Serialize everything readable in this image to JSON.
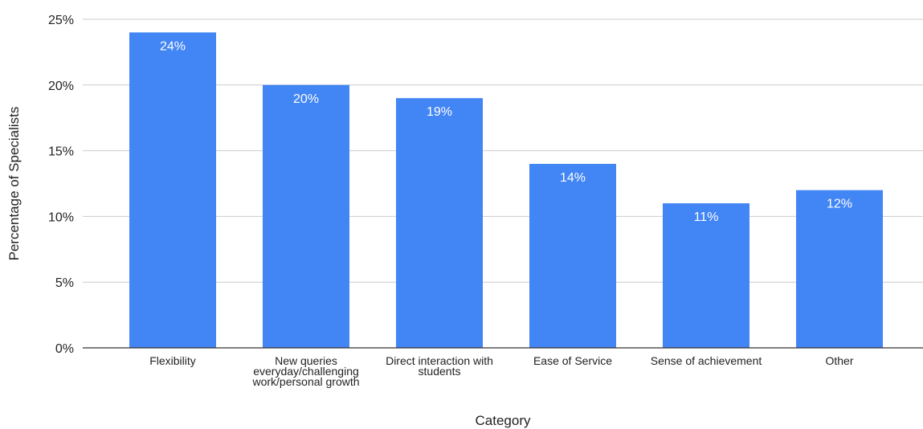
{
  "chart_data": {
    "type": "bar",
    "categories": [
      "Flexibility",
      "New queries everyday/challenging work/personal growth",
      "Direct interaction with students",
      "Ease of Service",
      "Sense of achievement",
      "Other"
    ],
    "category_label_lines": [
      [
        "Flexibility"
      ],
      [
        "New queries",
        "everyday/challenging",
        "work/personal growth"
      ],
      [
        "Direct interaction with",
        "students"
      ],
      [
        "Ease of Service"
      ],
      [
        "Sense of achievement"
      ],
      [
        "Other"
      ]
    ],
    "values": [
      24,
      20,
      19,
      14,
      11,
      12
    ],
    "data_labels": [
      "24%",
      "20%",
      "19%",
      "14%",
      "11%",
      "12%"
    ],
    "xlabel": "Category",
    "ylabel": "Percentage of Specialists",
    "ylim": [
      0,
      25
    ],
    "yticks": [
      0,
      5,
      10,
      15,
      20,
      25
    ],
    "ytick_labels": [
      "0%",
      "5%",
      "10%",
      "15%",
      "20%",
      "25%"
    ],
    "grid": true,
    "legend": "none",
    "colors": {
      "bar": "#4285f4",
      "grid": "#cccccc",
      "axis": "#333333",
      "text": "#222222",
      "data_label": "#ffffff"
    }
  }
}
